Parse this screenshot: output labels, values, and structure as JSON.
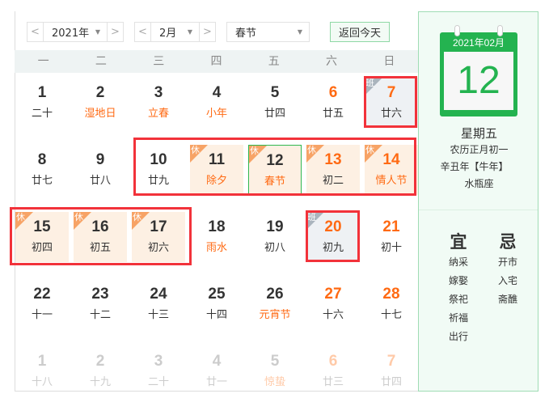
{
  "toolbar": {
    "year": "2021年",
    "month": "2月",
    "holiday": "春节",
    "today_label": "返回今天",
    "prev": "<",
    "next": ">"
  },
  "weekdays": [
    "一",
    "二",
    "三",
    "四",
    "五",
    "六",
    "日"
  ],
  "colors": {
    "accent": "#24b350",
    "orange": "#ff6a13",
    "highlight": "#f2323a",
    "rest_bg": "#fdf0e3"
  },
  "rest_tag": "休",
  "work_tag": "班",
  "days": [
    {
      "d": "1",
      "l": "二十"
    },
    {
      "d": "2",
      "l": "湿地日",
      "lo": true
    },
    {
      "d": "3",
      "l": "立春",
      "lo": true
    },
    {
      "d": "4",
      "l": "小年",
      "lo": true
    },
    {
      "d": "5",
      "l": "廿四"
    },
    {
      "d": "6",
      "l": "廿五",
      "do": true
    },
    {
      "d": "7",
      "l": "廿六",
      "do": true,
      "tag": "work"
    },
    {
      "d": "8",
      "l": "廿七"
    },
    {
      "d": "9",
      "l": "廿八"
    },
    {
      "d": "10",
      "l": "廿九"
    },
    {
      "d": "11",
      "l": "除夕",
      "lo": true,
      "tag": "rest"
    },
    {
      "d": "12",
      "l": "春节",
      "lo": true,
      "tag": "rest",
      "selected": true
    },
    {
      "d": "13",
      "l": "初二",
      "do": true,
      "tag": "rest"
    },
    {
      "d": "14",
      "l": "情人节",
      "do": true,
      "lo": true,
      "tag": "rest"
    },
    {
      "d": "15",
      "l": "初四",
      "tag": "rest"
    },
    {
      "d": "16",
      "l": "初五",
      "tag": "rest"
    },
    {
      "d": "17",
      "l": "初六",
      "tag": "rest"
    },
    {
      "d": "18",
      "l": "雨水",
      "lo": true
    },
    {
      "d": "19",
      "l": "初八"
    },
    {
      "d": "20",
      "l": "初九",
      "do": true,
      "tag": "work"
    },
    {
      "d": "21",
      "l": "初十",
      "do": true
    },
    {
      "d": "22",
      "l": "十一"
    },
    {
      "d": "23",
      "l": "十二"
    },
    {
      "d": "24",
      "l": "十三"
    },
    {
      "d": "25",
      "l": "十四"
    },
    {
      "d": "26",
      "l": "元宵节",
      "lo": true
    },
    {
      "d": "27",
      "l": "十六",
      "do": true
    },
    {
      "d": "28",
      "l": "十七",
      "do": true
    },
    {
      "d": "1",
      "l": "十八",
      "other": true
    },
    {
      "d": "2",
      "l": "十九",
      "other": true
    },
    {
      "d": "3",
      "l": "二十",
      "other": true
    },
    {
      "d": "4",
      "l": "廿一",
      "other": true
    },
    {
      "d": "5",
      "l": "惊蛰",
      "lo": true,
      "other": true
    },
    {
      "d": "6",
      "l": "廿三",
      "do": true,
      "other": true
    },
    {
      "d": "7",
      "l": "廿四",
      "do": true,
      "other": true
    }
  ],
  "panel": {
    "year_month": "2021年02月",
    "day": "12",
    "weekday": "星期五",
    "lunar": "农历正月初一",
    "ganzhi": "辛丑年【牛年】",
    "zodiac": "水瓶座",
    "yi_label": "宜",
    "ji_label": "忌",
    "yi": [
      "纳采",
      "嫁娶",
      "祭祀",
      "祈福",
      "出行"
    ],
    "ji": [
      "开市",
      "入宅",
      "斋醮"
    ]
  }
}
